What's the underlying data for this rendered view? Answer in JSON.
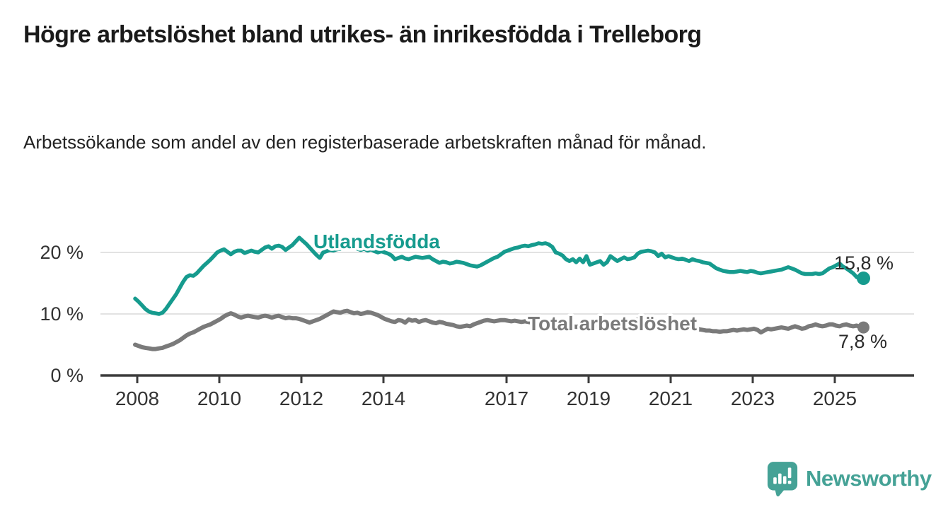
{
  "header": {
    "title": "Högre arbetslöshet bland utrikes- än inrikesfödda i Trelleborg",
    "subtitle": "Arbetssökande som andel av den registerbaserade arbetskraften månad för månad."
  },
  "footer": {
    "brand": "Newsworthy"
  },
  "colors": {
    "accent_teal": "#169b8e",
    "series_gray": "#7a7a7a",
    "logo_teal": "#45a296",
    "text_dark": "#1a1a1a",
    "tick_text": "#333333",
    "value_text": "#2b2b2b",
    "grid": "#d9d9d9",
    "axis": "#3c3c3c"
  },
  "chart_data": {
    "type": "line",
    "title": "Högre arbetslöshet bland utrikes- än inrikesfödda i Trelleborg",
    "subtitle": "Arbetssökande som andel av den registerbaserade arbetskraften månad för månad.",
    "unit": "%",
    "x_range": {
      "start": "2008-01",
      "end": "2025-10",
      "resolution": "monthly"
    },
    "x_tick_years": [
      2008,
      2010,
      2012,
      2014,
      2017,
      2019,
      2021,
      2023,
      2025
    ],
    "y_ticks": [
      {
        "label": "0 %",
        "value": 0
      },
      {
        "label": "10 %",
        "value": 10
      },
      {
        "label": "20 %",
        "value": 20
      }
    ],
    "ylim": [
      0,
      24
    ],
    "grid": "horizontal-only",
    "legend": "inline-labels",
    "series": [
      {
        "name": "Utlandsfödda",
        "color": "#169b8e",
        "end_label": "15,8 %",
        "end_value": 15.8,
        "values": [
          12.5,
          12.0,
          11.4,
          10.8,
          10.4,
          10.2,
          10.1,
          10.0,
          10.2,
          10.8,
          11.6,
          12.4,
          13.2,
          14.2,
          15.2,
          16.0,
          16.3,
          16.2,
          16.6,
          17.2,
          17.8,
          18.3,
          18.8,
          19.4,
          20.0,
          20.3,
          20.5,
          20.1,
          19.7,
          20.1,
          20.3,
          20.3,
          19.9,
          20.1,
          20.3,
          20.1,
          20.0,
          20.4,
          20.8,
          21.0,
          20.6,
          21.0,
          21.1,
          20.9,
          20.4,
          20.8,
          21.2,
          21.8,
          22.4,
          21.9,
          21.4,
          20.8,
          20.2,
          19.6,
          19.1,
          20.0,
          20.2,
          20.4,
          20.3,
          20.5,
          20.6,
          20.8,
          21.0,
          20.7,
          20.9,
          20.6,
          20.4,
          20.6,
          20.3,
          20.5,
          20.2,
          20.0,
          20.2,
          20.0,
          19.8,
          19.5,
          18.9,
          19.1,
          19.3,
          19.0,
          18.9,
          19.1,
          19.3,
          19.2,
          19.1,
          19.2,
          19.3,
          18.9,
          18.6,
          18.3,
          18.5,
          18.4,
          18.2,
          18.3,
          18.5,
          18.4,
          18.3,
          18.1,
          17.9,
          17.8,
          17.7,
          17.9,
          18.2,
          18.5,
          18.8,
          19.1,
          19.3,
          19.7,
          20.1,
          20.3,
          20.5,
          20.7,
          20.8,
          21.0,
          21.1,
          21.0,
          21.2,
          21.3,
          21.5,
          21.4,
          21.5,
          21.3,
          20.9,
          20.0,
          19.8,
          19.5,
          18.9,
          18.6,
          18.9,
          18.4,
          19.0,
          18.4,
          19.4,
          18.0,
          18.2,
          18.4,
          18.6,
          18.0,
          18.4,
          19.4,
          19.0,
          18.6,
          18.9,
          19.2,
          18.9,
          19.0,
          19.2,
          19.8,
          20.1,
          20.2,
          20.3,
          20.2,
          20.0,
          19.4,
          19.8,
          19.2,
          19.4,
          19.2,
          19.0,
          18.9,
          19.0,
          18.8,
          18.6,
          18.9,
          18.7,
          18.6,
          18.4,
          18.3,
          18.2,
          17.8,
          17.4,
          17.2,
          17.0,
          16.9,
          16.8,
          16.8,
          16.9,
          17.0,
          16.9,
          16.8,
          17.0,
          16.9,
          16.7,
          16.6,
          16.7,
          16.8,
          16.9,
          17.0,
          17.1,
          17.2,
          17.4,
          17.6,
          17.4,
          17.2,
          16.9,
          16.6,
          16.5,
          16.5,
          16.5,
          16.6,
          16.5,
          16.6,
          17.0,
          17.4,
          17.6,
          17.9,
          18.2,
          17.7,
          17.4,
          17.0,
          16.6,
          16.0,
          15.7,
          15.8
        ]
      },
      {
        "name": "Total arbetslöshet",
        "color": "#7a7a7a",
        "end_label": "7,8 %",
        "end_value": 7.8,
        "values": [
          5.0,
          4.8,
          4.6,
          4.5,
          4.4,
          4.3,
          4.3,
          4.4,
          4.5,
          4.7,
          4.9,
          5.1,
          5.4,
          5.7,
          6.1,
          6.5,
          6.8,
          7.0,
          7.3,
          7.6,
          7.9,
          8.1,
          8.3,
          8.6,
          8.9,
          9.2,
          9.6,
          9.9,
          10.1,
          9.9,
          9.6,
          9.4,
          9.6,
          9.7,
          9.6,
          9.5,
          9.4,
          9.6,
          9.7,
          9.6,
          9.4,
          9.6,
          9.7,
          9.5,
          9.3,
          9.4,
          9.3,
          9.3,
          9.2,
          9.0,
          8.8,
          8.6,
          8.8,
          9.0,
          9.2,
          9.5,
          9.8,
          10.1,
          10.4,
          10.3,
          10.2,
          10.4,
          10.5,
          10.3,
          10.1,
          10.2,
          10.0,
          10.1,
          10.3,
          10.2,
          10.0,
          9.8,
          9.5,
          9.2,
          9.0,
          8.8,
          8.7,
          9.0,
          8.9,
          8.6,
          9.1,
          8.9,
          9.0,
          8.7,
          8.9,
          9.0,
          8.8,
          8.6,
          8.5,
          8.7,
          8.6,
          8.4,
          8.3,
          8.2,
          8.0,
          7.9,
          8.0,
          8.1,
          8.0,
          8.3,
          8.5,
          8.7,
          8.9,
          9.0,
          8.9,
          8.8,
          8.9,
          9.0,
          9.0,
          8.9,
          8.8,
          8.9,
          8.8,
          8.7,
          8.8,
          8.7,
          8.6,
          8.5,
          8.6,
          8.5,
          8.4,
          8.3,
          8.2,
          8.1,
          8.0,
          8.1,
          8.0,
          7.9,
          8.0,
          7.9,
          8.0,
          8.1,
          8.1,
          8.2,
          8.1,
          8.2,
          8.3,
          8.2,
          8.3,
          8.4,
          8.3,
          8.4,
          8.4,
          8.5,
          8.6,
          8.7,
          8.9,
          9.1,
          9.2,
          9.1,
          9.0,
          8.9,
          8.8,
          8.7,
          8.6,
          8.5,
          8.4,
          8.3,
          8.2,
          8.1,
          8.0,
          7.9,
          7.8,
          7.7,
          7.6,
          7.5,
          7.4,
          7.3,
          7.3,
          7.2,
          7.2,
          7.1,
          7.2,
          7.2,
          7.3,
          7.4,
          7.3,
          7.4,
          7.5,
          7.4,
          7.5,
          7.6,
          7.4,
          7.0,
          7.3,
          7.6,
          7.5,
          7.6,
          7.7,
          7.8,
          7.7,
          7.6,
          7.8,
          8.0,
          7.8,
          7.6,
          7.7,
          8.0,
          8.1,
          8.3,
          8.1,
          8.0,
          8.1,
          8.3,
          8.3,
          8.1,
          8.0,
          8.2,
          8.3,
          8.1,
          8.0,
          8.1,
          7.9,
          7.8
        ]
      }
    ]
  }
}
